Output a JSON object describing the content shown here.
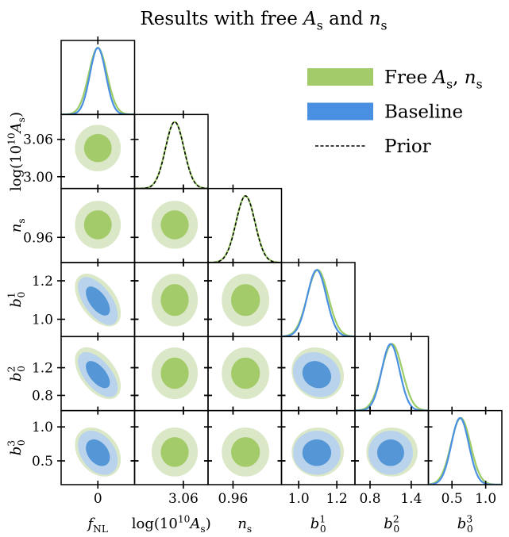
{
  "chart_data": {
    "type": "corner",
    "title": [
      {
        "t": "Results with free "
      },
      {
        "t": "A",
        "it": true
      },
      {
        "t": "s",
        "sub": true
      },
      {
        "t": " and "
      },
      {
        "t": "n",
        "it": true
      },
      {
        "t": "s",
        "sub": true
      }
    ],
    "legend_position": "top-right",
    "contour_levels": [
      0.68,
      0.95
    ],
    "parameters": [
      {
        "key": "fNL",
        "label": [
          {
            "t": "f",
            "it": true
          },
          {
            "t": "NL",
            "sub": true
          }
        ],
        "range": [
          -60,
          60
        ],
        "x_ticks": [
          0
        ],
        "y_ticks": [],
        "tick_labels": {
          "0": "0"
        }
      },
      {
        "key": "logAs",
        "label": [
          {
            "t": "log(10"
          },
          {
            "t": "10",
            "sup": true
          },
          {
            "t": "A",
            "it": true
          },
          {
            "t": "s",
            "sub": true
          },
          {
            "t": ")"
          }
        ],
        "range": [
          2.981,
          3.1
        ],
        "x_ticks": [
          3.06
        ],
        "y_ticks": [
          3.0,
          3.06
        ],
        "tick_labels": {
          "3": "3.00",
          "3.06": "3.06"
        }
      },
      {
        "key": "ns",
        "label": [
          {
            "t": "n",
            "it": true
          },
          {
            "t": "s",
            "sub": true
          }
        ],
        "range": [
          0.926,
          1.026
        ],
        "x_ticks": [
          0.96
        ],
        "y_ticks": [
          0.96
        ],
        "tick_labels": {
          "0.96": "0.96"
        }
      },
      {
        "key": "b1",
        "label": [
          {
            "t": "b",
            "it": true
          },
          {
            "t": "1",
            "sup": true
          },
          {
            "t": "0",
            "sub": true,
            "under": true
          }
        ],
        "range": [
          0.91,
          1.295
        ],
        "x_ticks": [
          1.0,
          1.2
        ],
        "y_ticks": [
          1.0,
          1.2
        ],
        "tick_labels": {
          "1": "1.0",
          "1.2": "1.2"
        }
      },
      {
        "key": "b2",
        "label": [
          {
            "t": "b",
            "it": true
          },
          {
            "t": "2",
            "sup": true
          },
          {
            "t": "0",
            "sub": true,
            "under": true
          }
        ],
        "range": [
          0.58,
          1.65
        ],
        "x_ticks": [
          0.8,
          1.4
        ],
        "y_ticks": [
          0.8,
          1.2
        ],
        "tick_labels": {
          "0.8": "0.8",
          "1.2": "1.2",
          "1.4": "1.4"
        }
      },
      {
        "key": "b3",
        "label": [
          {
            "t": "b",
            "it": true
          },
          {
            "t": "3",
            "sup": true
          },
          {
            "t": "0",
            "sub": true,
            "under": true
          }
        ],
        "range": [
          0.15,
          1.24
        ],
        "x_ticks": [
          0.5,
          1.0
        ],
        "y_ticks": [
          0.5,
          1.0
        ],
        "tick_labels": {
          "0.5": "0.5",
          "1": "1.0"
        }
      }
    ],
    "series": [
      {
        "name": [
          {
            "t": "Free "
          },
          {
            "t": "A",
            "it": true
          },
          {
            "t": "s",
            "sub": true
          },
          {
            "t": ", "
          },
          {
            "t": "n",
            "it": true
          },
          {
            "t": "s",
            "sub": true
          }
        ],
        "color": "#a4cb6a",
        "color_light": "#dbe8c8",
        "color_dark": "#a4cb6a",
        "line": "#9ccc65",
        "params": [
          "fNL",
          "logAs",
          "ns",
          "b1",
          "b2",
          "b3"
        ],
        "mean": {
          "fNL": 0,
          "logAs": 3.046,
          "ns": 0.977,
          "b1": 1.1,
          "b2": 1.12,
          "b3": 0.63
        },
        "sigma": {
          "fNL": 15,
          "logAs": 0.015,
          "ns": 0.013,
          "b1": 0.055,
          "b2": 0.15,
          "b3": 0.145
        },
        "corr": {
          "fNL|b1": -0.5,
          "fNL|b2": -0.5,
          "fNL|b3": -0.3,
          "b1|b2": -0.1
        }
      },
      {
        "name": [
          {
            "t": "Baseline"
          }
        ],
        "color": "#4a90e2",
        "color_light": "#b9d3ec",
        "color_dark": "#5596d6",
        "line": "#4a90e2",
        "params": [
          "fNL",
          "b1",
          "b2",
          "b3"
        ],
        "mean": {
          "fNL": 0,
          "b1": 1.095,
          "b2": 1.1,
          "b3": 0.62
        },
        "sigma": {
          "fNL": 13,
          "b1": 0.05,
          "b2": 0.13,
          "b3": 0.13
        },
        "corr": {
          "fNL|b1": -0.6,
          "fNL|b2": -0.6,
          "fNL|b3": -0.35,
          "b1|b2": -0.15
        }
      },
      {
        "name": [
          {
            "t": "Prior"
          }
        ],
        "color": "#000000",
        "dashed": true,
        "params": [
          "logAs",
          "ns"
        ],
        "mean": {
          "logAs": 3.046,
          "ns": 0.977
        },
        "sigma": {
          "logAs": 0.0148,
          "ns": 0.0128
        },
        "one_d_only": true
      }
    ]
  }
}
